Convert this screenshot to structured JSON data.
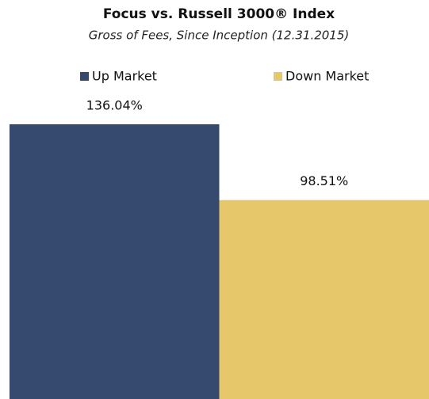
{
  "chart_data": {
    "type": "bar",
    "title": "Focus vs. Russell 3000® Index",
    "subtitle": "Gross of Fees, Since Inception (12.31.2015)",
    "categories": [
      null
    ],
    "series": [
      {
        "name": "Up Market",
        "color": "#364a6f",
        "values": [
          136.04
        ],
        "value_labels": [
          "136.04%"
        ]
      },
      {
        "name": "Down Market",
        "color": "#e6c86a",
        "values": [
          98.51
        ],
        "value_labels": [
          "98.51%"
        ]
      }
    ]
  }
}
